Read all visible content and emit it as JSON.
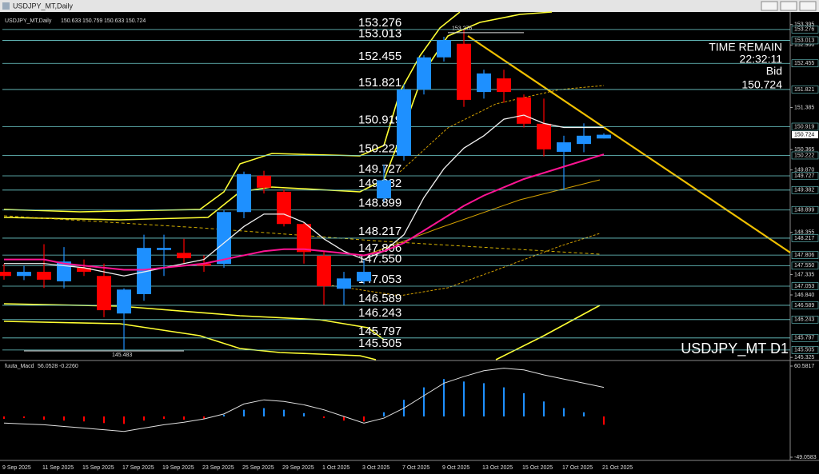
{
  "window": {
    "title": "USDJPY_MT,Daily"
  },
  "chart_data": [
    {
      "type": "candlestick",
      "title": "USDJPY_MT,Daily",
      "header_ohlc": [
        150.633,
        150.759,
        150.633,
        150.724
      ],
      "categories": [
        "9 Sep 2025",
        null,
        "11 Sep 2025",
        null,
        "15 Sep 2025",
        null,
        "17 Sep 2025",
        null,
        "19 Sep 2025",
        null,
        "23 Sep 2025",
        null,
        "25 Sep 2025",
        null,
        "29 Sep 2025",
        null,
        "1 Oct 2025",
        null,
        "3 Oct 2025",
        null,
        "7 Oct 2025",
        null,
        "9 Oct 2025",
        null,
        "13 Oct 2025",
        null,
        "15 Oct 2025",
        null,
        "17 Oct 2025",
        null,
        "21 Oct 2025"
      ],
      "open": [
        147.4,
        147.3,
        147.4,
        147.17,
        147.5,
        147.3,
        146.39,
        146.86,
        147.93,
        147.86,
        147.6,
        147.59,
        148.85,
        149.73,
        149.34,
        148.56,
        147.79,
        146.99,
        147.17,
        149.18,
        150.21,
        151.82,
        152.6,
        152.93,
        151.76,
        152.09,
        151.63,
        150.99,
        150.31,
        150.5,
        150.633
      ],
      "high": [
        147.59,
        147.55,
        148.07,
        148.0,
        147.7,
        147.6,
        147.0,
        148.3,
        148.3,
        148.2,
        147.8,
        148.9,
        149.83,
        149.85,
        149.4,
        148.6,
        147.9,
        147.4,
        147.7,
        150.0,
        151.95,
        152.65,
        153.1,
        153.276,
        152.3,
        152.3,
        151.7,
        151.6,
        150.7,
        151.0,
        150.759
      ],
      "low": [
        147.21,
        147.2,
        147.01,
        147.0,
        147.3,
        146.3,
        145.483,
        146.7,
        147.3,
        147.6,
        147.4,
        147.5,
        148.7,
        149.3,
        148.5,
        147.6,
        146.6,
        146.6,
        147.1,
        149.1,
        150.1,
        151.7,
        152.5,
        151.4,
        151.6,
        151.5,
        150.9,
        150.2,
        149.38,
        150.3,
        150.633
      ],
      "close": [
        147.3,
        147.4,
        147.21,
        147.65,
        147.4,
        146.47,
        146.97,
        147.98,
        147.98,
        147.73,
        147.55,
        148.85,
        149.77,
        149.44,
        148.56,
        147.88,
        147.05,
        147.24,
        147.4,
        149.62,
        151.82,
        152.6,
        153.02,
        151.57,
        152.21,
        151.76,
        150.99,
        150.37,
        150.54,
        150.7,
        150.724
      ],
      "up_color": "#1e90ff",
      "down_color": "#ff0000",
      "series": [
        {
          "color": "#f0f0f0",
          "values": [
            147.6,
            147.6,
            147.6,
            147.55,
            147.5,
            147.4,
            147.3,
            147.4,
            147.5,
            147.6,
            147.7,
            148.1,
            148.5,
            148.8,
            148.8,
            148.6,
            148.2,
            147.9,
            147.7,
            147.9,
            148.3,
            149.2,
            149.9,
            150.4,
            150.7,
            151.1,
            151.2,
            151.0,
            150.9,
            150.9,
            150.9
          ]
        },
        {
          "color": "#ff1493",
          "values": [
            147.7,
            147.7,
            147.7,
            147.6,
            147.55,
            147.5,
            147.45,
            147.45,
            147.5,
            147.55,
            147.6,
            147.7,
            147.8,
            147.9,
            147.95,
            147.95,
            147.9,
            147.85,
            147.8,
            147.9,
            148.1,
            148.4,
            148.7,
            149.0,
            149.25,
            149.45,
            149.65,
            149.8,
            149.95,
            150.1,
            150.25
          ]
        }
      ],
      "ylim": [
        145.27,
        153.7
      ],
      "yticks": [
        153.395,
        {
          "value": 152.9,
          "label": "152.900"
        },
        151.385,
        150.365,
        {
          "value": 149.87,
          "label": "149.870"
        },
        148.355,
        147.335,
        {
          "value": 146.84,
          "label": "146.840"
        },
        145.325
      ],
      "levels": [
        153.276,
        153.013,
        152.455,
        151.821,
        150.919,
        150.222,
        149.727,
        149.382,
        148.899,
        148.217,
        147.806,
        {
          "value": 147.55,
          "label": "147.550"
        },
        147.053,
        146.589,
        146.243,
        145.797,
        145.505
      ],
      "level_color": "#6fcfcf",
      "high_marker": 153.276,
      "low_marker": 145.483,
      "time_remain_label": "TIME REMAIN",
      "time_remain": "22:32:11",
      "bid_label": "Bid",
      "bid": 150.724,
      "symbol_label": "USDJPY_MT D1"
    },
    {
      "type": "macd",
      "title": "fuuta_Macd",
      "readout": [
        56.0528,
        {
          "value": -0.226,
          "label": "-0.2260"
        }
      ],
      "histogram": [
        -3,
        -2,
        -4,
        -5,
        -6,
        -8,
        -9,
        -5,
        -3,
        -4,
        -3,
        2,
        8,
        10,
        8,
        4,
        -2,
        -5,
        -6,
        5,
        20,
        35,
        45,
        42,
        40,
        35,
        28,
        18,
        10,
        5,
        -10
      ],
      "up_color": "#1e90ff",
      "down_color": "#ff0000",
      "signal": [
        -8,
        -9,
        -10,
        -12,
        -14,
        -16,
        -18,
        -14,
        -10,
        -7,
        -3,
        3,
        15,
        20,
        18,
        14,
        8,
        0,
        -8,
        -2,
        10,
        25,
        40,
        48,
        55,
        58,
        56,
        50,
        45,
        40,
        35
      ],
      "signal_color": "#e0e0e0",
      "ylim": [
        -49.0583,
        60.5817
      ],
      "yticks": [
        60.5817,
        -49.0583
      ]
    }
  ]
}
